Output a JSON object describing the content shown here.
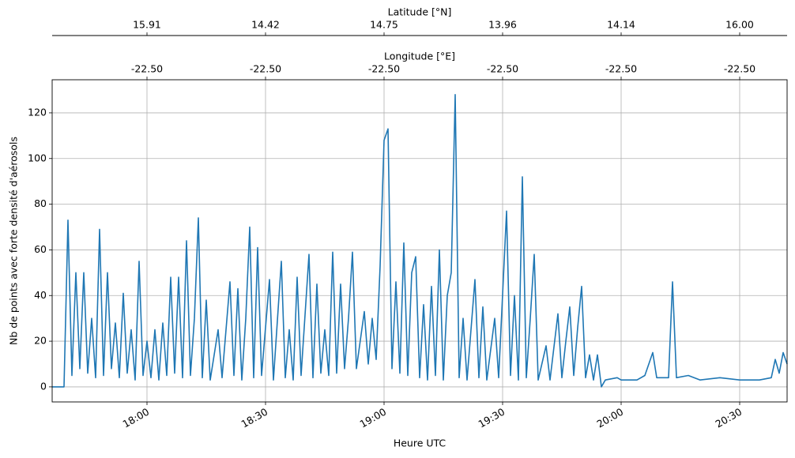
{
  "chart_data": {
    "type": "line",
    "xlabel": "Heure UTC",
    "ylabel": "Nb de points avec forte densité d'aérosols",
    "x": [
      "17:36",
      "17:39",
      "17:40",
      "17:41",
      "17:42",
      "17:43",
      "17:44",
      "17:45",
      "17:46",
      "17:47",
      "17:48",
      "17:49",
      "17:50",
      "17:51",
      "17:52",
      "17:53",
      "17:54",
      "17:55",
      "17:56",
      "17:57",
      "17:58",
      "17:59",
      "18:00",
      "18:01",
      "18:02",
      "18:03",
      "18:04",
      "18:05",
      "18:06",
      "18:07",
      "18:08",
      "18:09",
      "18:10",
      "18:11",
      "18:12",
      "18:13",
      "18:14",
      "18:15",
      "18:16",
      "18:18",
      "18:19",
      "18:21",
      "18:22",
      "18:23",
      "18:24",
      "18:25",
      "18:26",
      "18:27",
      "18:28",
      "18:29",
      "18:31",
      "18:32",
      "18:34",
      "18:35",
      "18:36",
      "18:37",
      "18:38",
      "18:39",
      "18:41",
      "18:42",
      "18:43",
      "18:44",
      "18:45",
      "18:46",
      "18:47",
      "18:48",
      "18:49",
      "18:50",
      "18:51",
      "18:52",
      "18:53",
      "18:55",
      "18:56",
      "18:57",
      "18:58",
      "18:59",
      "19:00",
      "19:01",
      "19:02",
      "19:03",
      "19:04",
      "19:05",
      "19:06",
      "19:07",
      "19:08",
      "19:09",
      "19:10",
      "19:11",
      "19:12",
      "19:13",
      "19:14",
      "19:15",
      "19:16",
      "19:17",
      "19:18",
      "19:19",
      "19:20",
      "19:21",
      "19:22",
      "19:23",
      "19:24",
      "19:25",
      "19:26",
      "19:28",
      "19:29",
      "19:31",
      "19:32",
      "19:33",
      "19:34",
      "19:35",
      "19:36",
      "19:37",
      "19:38",
      "19:39",
      "19:41",
      "19:42",
      "19:44",
      "19:45",
      "19:46",
      "19:47",
      "19:48",
      "19:49",
      "19:50",
      "19:51",
      "19:52",
      "19:53",
      "19:54",
      "19:55",
      "19:56",
      "19:59",
      "20:00",
      "20:04",
      "20:06",
      "20:08",
      "20:09",
      "20:12",
      "20:13",
      "20:14",
      "20:17",
      "20:20",
      "20:25",
      "20:30",
      "20:35",
      "20:38",
      "20:39",
      "20:40",
      "20:41",
      "20:42"
    ],
    "series": [
      {
        "color": "#1f77b4",
        "values": [
          0,
          0,
          73,
          5,
          50,
          8,
          50,
          6,
          30,
          4,
          69,
          5,
          50,
          8,
          28,
          4,
          41,
          6,
          25,
          3,
          55,
          5,
          20,
          4,
          25,
          3,
          28,
          5,
          48,
          6,
          48,
          4,
          64,
          5,
          30,
          74,
          4,
          38,
          3,
          25,
          4,
          46,
          5,
          43,
          3,
          30,
          70,
          4,
          61,
          5,
          47,
          3,
          55,
          4,
          25,
          3,
          48,
          5,
          58,
          4,
          45,
          6,
          25,
          5,
          59,
          6,
          45,
          8,
          30,
          59,
          8,
          33,
          10,
          30,
          12,
          53,
          108,
          113,
          8,
          46,
          6,
          63,
          5,
          50,
          57,
          4,
          36,
          3,
          44,
          5,
          60,
          3,
          40,
          50,
          128,
          4,
          30,
          3,
          25,
          47,
          4,
          35,
          3,
          30,
          4,
          77,
          5,
          40,
          3,
          92,
          4,
          30,
          58,
          3,
          18,
          3,
          32,
          4,
          20,
          35,
          5,
          26,
          44,
          4,
          14,
          3,
          14,
          0,
          3,
          4,
          3,
          3,
          5,
          15,
          4,
          4,
          46,
          4,
          5,
          3,
          4,
          3,
          3,
          4,
          12,
          6,
          15,
          10
        ]
      }
    ],
    "xlim": [
      "17:36",
      "20:42"
    ],
    "xticks": [
      "18:00",
      "18:30",
      "19:00",
      "19:30",
      "20:00",
      "20:30"
    ],
    "ylim": [
      -6.6,
      134.5
    ],
    "yticks": [
      0,
      20,
      40,
      60,
      80,
      100,
      120
    ],
    "grid": true,
    "top_axes": [
      {
        "label": "Latitude [°N]",
        "ticks": [
          {
            "value": "18:00",
            "label": "15.91"
          },
          {
            "value": "18:30",
            "label": "14.42"
          },
          {
            "value": "19:00",
            "label": "14.75"
          },
          {
            "value": "19:30",
            "label": "13.96"
          },
          {
            "value": "20:00",
            "label": "14.14"
          },
          {
            "value": "20:30",
            "label": "16.00"
          }
        ]
      },
      {
        "label": "Longitude [°E]",
        "ticks": [
          {
            "value": "18:00",
            "label": "-22.50"
          },
          {
            "value": "18:30",
            "label": "-22.50"
          },
          {
            "value": "19:00",
            "label": "-22.50"
          },
          {
            "value": "19:30",
            "label": "-22.50"
          },
          {
            "value": "20:00",
            "label": "-22.50"
          },
          {
            "value": "20:30",
            "label": "-22.50"
          }
        ]
      }
    ]
  }
}
